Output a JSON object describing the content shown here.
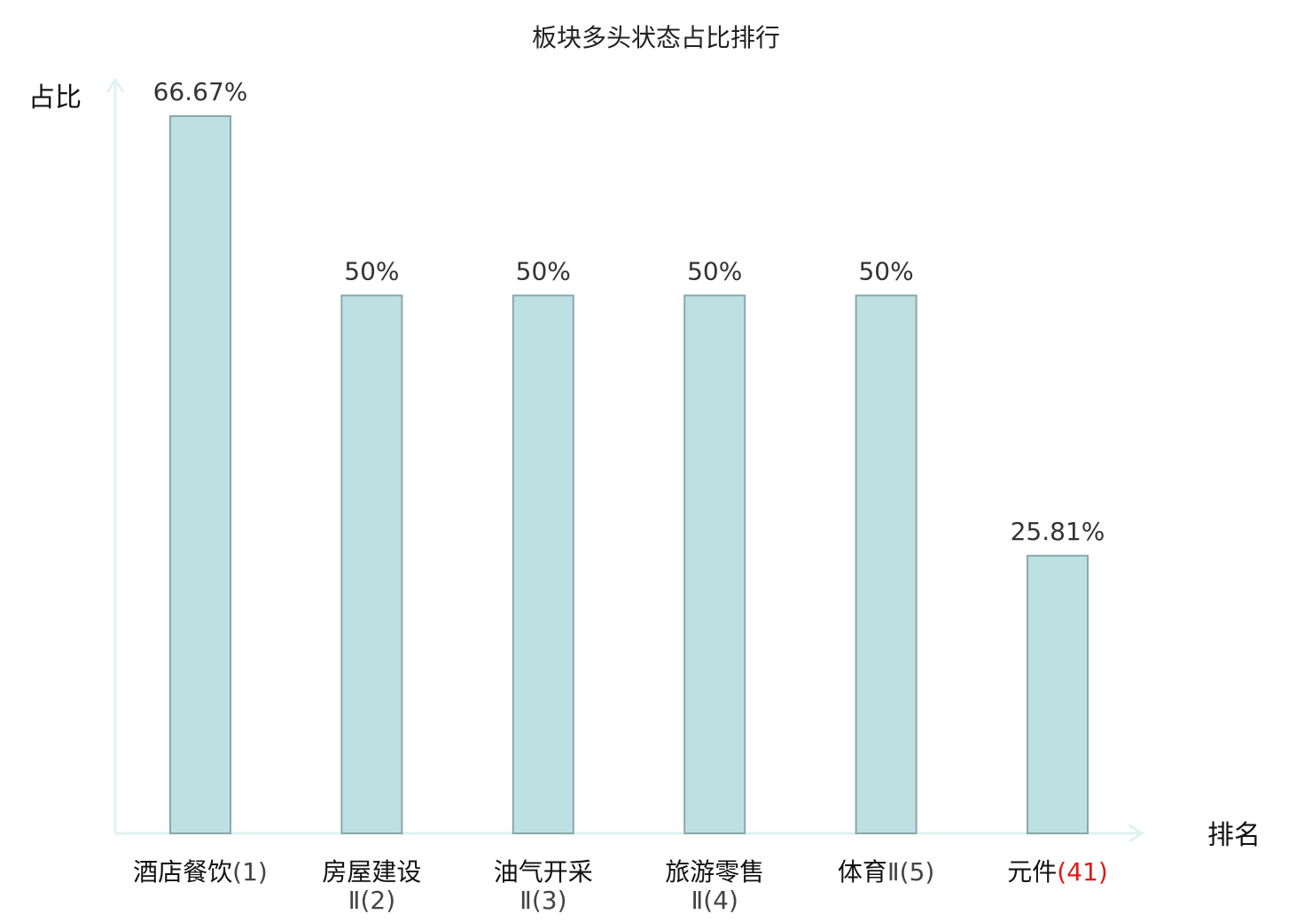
{
  "chart_data": {
    "type": "bar",
    "title": "板块多头状态占比排行",
    "ylabel": "占比",
    "xlabel": "排名",
    "ylim": [
      0,
      70
    ],
    "grid": false,
    "categories": [
      {
        "name": "酒店餐饮",
        "rank": "(1)",
        "highlight": false
      },
      {
        "name": "房屋建设",
        "rank": "Ⅱ(2)",
        "highlight": false
      },
      {
        "name": "油气开采",
        "rank": "Ⅱ(3)",
        "highlight": false
      },
      {
        "name": "旅游零售",
        "rank": "Ⅱ(4)",
        "highlight": false
      },
      {
        "name": "体育",
        "rank": "Ⅱ(5)",
        "highlight": false
      },
      {
        "name": "元件",
        "rank": "(41)",
        "highlight": true
      }
    ],
    "values": [
      66.67,
      50,
      50,
      50,
      50,
      25.81
    ],
    "value_labels": [
      "66.67%",
      "50%",
      "50%",
      "50%",
      "50%",
      "25.81%"
    ]
  },
  "colors": {
    "bar_fill": "#bde0e3",
    "bar_stroke": "#8aa8aa",
    "axis": "#dff2ef",
    "highlight_text": "#e0181b",
    "normal_text": "#111111",
    "value_text": "#333333"
  }
}
